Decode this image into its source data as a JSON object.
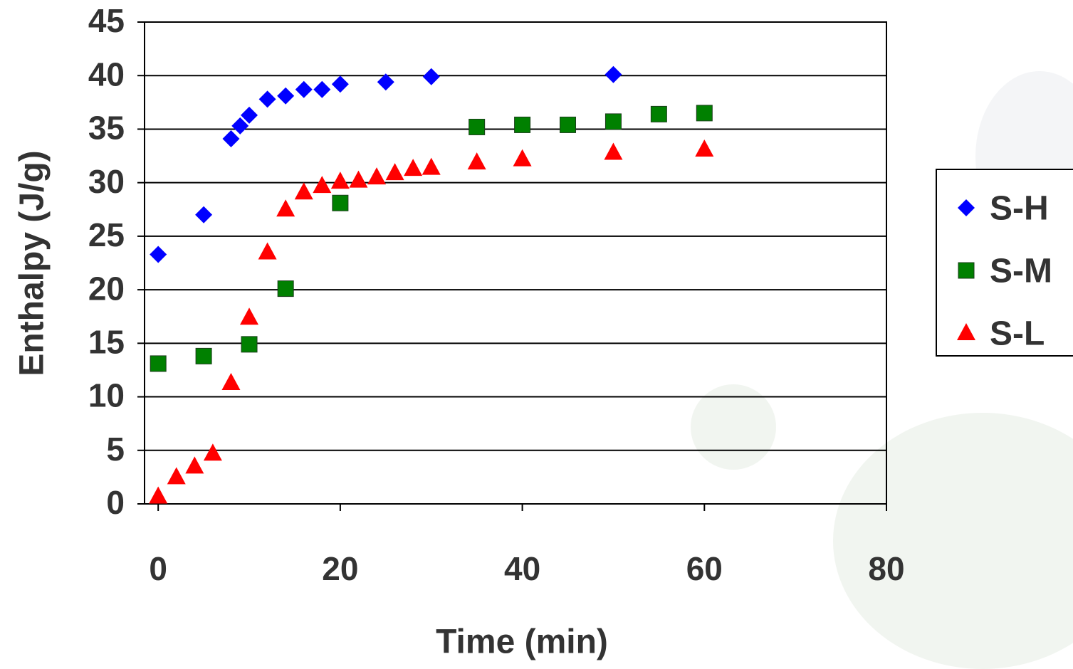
{
  "chart_data": {
    "type": "scatter",
    "x_label": "Time (min)",
    "y_label": "Enthalpy (J/g)",
    "xlim": [
      -1.5,
      80
    ],
    "xticks": [
      0,
      20,
      40,
      60,
      80
    ],
    "ylim": [
      0,
      45
    ],
    "yticks": [
      0,
      5,
      10,
      15,
      20,
      25,
      30,
      35,
      40,
      45
    ],
    "grid": true,
    "legend": "right",
    "series": [
      {
        "name": "S-H",
        "color": "#0000ff",
        "marker": "diamond",
        "x": [
          0,
          5,
          8,
          9,
          10,
          12,
          14,
          16,
          18,
          20,
          25,
          30,
          50
        ],
        "values": [
          23.3,
          27.0,
          34.1,
          35.3,
          36.3,
          37.8,
          38.1,
          38.7,
          38.7,
          39.2,
          39.4,
          39.9,
          40.1
        ]
      },
      {
        "name": "S-M",
        "color": "#008000",
        "marker": "square",
        "x": [
          0,
          5,
          10,
          14,
          20,
          35,
          40,
          45,
          50,
          55,
          60
        ],
        "values": [
          13.1,
          13.8,
          14.9,
          20.1,
          28.1,
          35.2,
          35.4,
          35.4,
          35.7,
          36.4,
          36.5
        ]
      },
      {
        "name": "S-L",
        "color": "#ff0000",
        "marker": "triangle",
        "x": [
          0,
          2,
          4,
          6,
          8,
          10,
          12,
          14,
          16,
          18,
          20,
          22,
          24,
          26,
          28,
          30,
          35,
          40,
          50,
          60
        ],
        "values": [
          0.7,
          2.5,
          3.5,
          4.7,
          11.3,
          17.4,
          23.5,
          27.5,
          29.1,
          29.7,
          30.1,
          30.2,
          30.5,
          30.9,
          31.3,
          31.4,
          31.9,
          32.2,
          32.8,
          33.1
        ]
      }
    ]
  }
}
